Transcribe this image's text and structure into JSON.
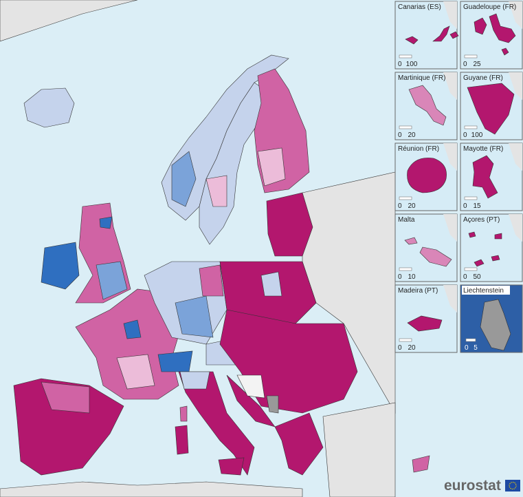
{
  "insets": [
    {
      "label": "Canarias (ES)",
      "scale": [
        0,
        100
      ]
    },
    {
      "label": "Guadeloupe (FR)",
      "scale": [
        0,
        25
      ]
    },
    {
      "label": "Martinique (FR)",
      "scale": [
        0,
        20
      ]
    },
    {
      "label": "Guyane (FR)",
      "scale": [
        0,
        100
      ]
    },
    {
      "label": "Réunion (FR)",
      "scale": [
        0,
        20
      ]
    },
    {
      "label": "Mayotte (FR)",
      "scale": [
        0,
        15
      ]
    },
    {
      "label": "Malta",
      "scale": [
        0,
        10
      ]
    },
    {
      "label": "Açores (PT)",
      "scale": [
        0,
        50
      ]
    },
    {
      "label": "Madeira (PT)",
      "scale": [
        0,
        20
      ]
    },
    {
      "label": "Liechtenstein",
      "scale": [
        0,
        5
      ]
    }
  ],
  "logo": "eurostat"
}
